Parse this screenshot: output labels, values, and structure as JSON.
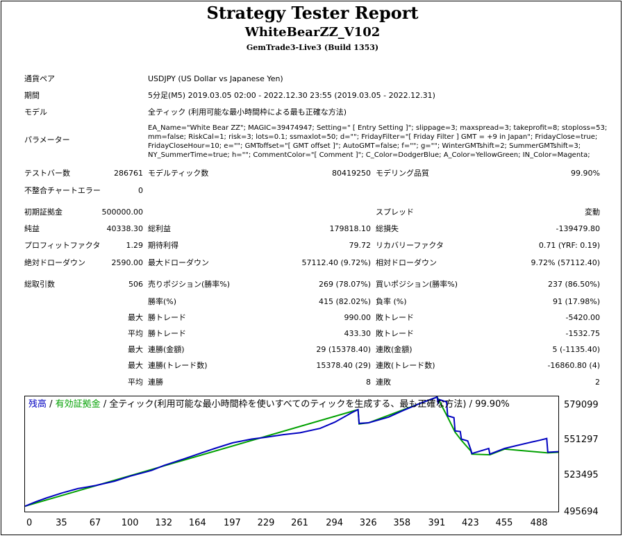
{
  "header": {
    "title": "Strategy Tester Report",
    "subtitle": "WhiteBearZZ_V102",
    "build": "GemTrade3-Live3 (Build 1353)"
  },
  "info": {
    "pair_label": "通貨ペア",
    "pair_value": "USDJPY (US Dollar vs Japanese Yen)",
    "period_label": "期間",
    "period_value": "5分足(M5) 2019.03.05 02:00 - 2022.12.30 23:55 (2019.03.05 - 2022.12.31)",
    "model_label": "モデル",
    "model_value": "全ティック (利用可能な最小時間枠による最も正確な方法)",
    "params_label": "パラメーター",
    "params_lines": [
      "EA_Name=\"White Bear ZZ\"; MAGIC=39474947; Setting=\" [ Entry Setting ]\"; slippage=3; maxspread=3; takeprofit=8; stoploss=53;",
      "mm=false; RiskCal=1; risk=3; lots=0.1; ssmaxlot=50; d=\"\"; FridayFilter=\"[ Friday Filter ] GMT = +9 in Japan\"; FridayClose=true;",
      "FridayCloseHour=10; e=\"\"; GMToffset=\"[ GMT offset ]\"; AutoGMT=false; f=\"\"; g=\"\"; WinterGMTshift=2; SummerGMTshift=3;",
      "NY_SummerTime=true; h=\"\"; CommentColor=\"[ Comment ]\"; C_Color=DodgerBlue; A_Color=YellowGreen; IN_Color=Magenta;"
    ]
  },
  "stats": {
    "bars_label": "テストバー数",
    "bars_value": "286761",
    "ticks_label": "モデルティック数",
    "ticks_value": "80419250",
    "quality_label": "モデリング品質",
    "quality_value": "99.90%",
    "mismatch_label": "不整合チャートエラー",
    "mismatch_value": "0",
    "deposit_label": "初期証拠金",
    "deposit_value": "500000.00",
    "spread_label": "スプレッド",
    "spread_value": "変動",
    "net_label": "純益",
    "net_value": "40338.30",
    "gross_profit_label": "総利益",
    "gross_profit_value": "179818.10",
    "gross_loss_label": "総損失",
    "gross_loss_value": "-139479.80",
    "pf_label": "プロフィットファクタ",
    "pf_value": "1.29",
    "payoff_label": "期待利得",
    "payoff_value": "79.72",
    "recovery_label": "リカバリーファクタ",
    "recovery_value": "0.71 (YRF: 0.19)",
    "abs_dd_label": "絶対ドローダウン",
    "abs_dd_value": "2590.00",
    "max_dd_label": "最大ドローダウン",
    "max_dd_value": "57112.40 (9.72%)",
    "rel_dd_label": "相対ドローダウン",
    "rel_dd_value": "9.72% (57112.40)",
    "trades_label": "総取引数",
    "trades_value": "506",
    "short_label": "売りポジション(勝率%)",
    "short_value": "269 (78.07%)",
    "long_label": "買いポジション(勝率%)",
    "long_value": "237 (86.50%)",
    "winrate_label": "勝率(%)",
    "winrate_value": "415 (82.02%)",
    "lossrate_label": "負率 (%)",
    "lossrate_value": "91 (17.98%)",
    "max_label": "最大",
    "avg_label": "平均",
    "win_trade_label": "勝トレード",
    "loss_trade_label": "敗トレード",
    "max_win_value": "990.00",
    "max_loss_value": "-5420.00",
    "avg_win_value": "433.30",
    "avg_loss_value": "-1532.75",
    "cons_win_amt_label": "連勝(金額)",
    "cons_win_amt_value": "29 (15378.40)",
    "cons_loss_amt_label": "連敗(金額)",
    "cons_loss_amt_value": "5 (-1135.40)",
    "cons_win_cnt_label": "連勝(トレード数)",
    "cons_win_cnt_value": "15378.40 (29)",
    "cons_loss_cnt_label": "連敗(トレード数)",
    "cons_loss_cnt_value": "-16860.80 (4)",
    "avg_cons_win_label": "連勝",
    "avg_cons_win_value": "8",
    "avg_cons_loss_label": "連敗",
    "avg_cons_loss_value": "2"
  },
  "chart_title": {
    "balance": "残高",
    "sep1": " / ",
    "equity": "有効証拠金",
    "rest": " / 全ティック(利用可能な最小時間枠を使いすべてのティックを生成する、最も正確な方法) / 99.90%"
  },
  "colors": {
    "balance": "#0000c0",
    "equity": "#00a000"
  },
  "chart_data": {
    "type": "line",
    "x_ticks": [
      "0",
      "35",
      "67",
      "100",
      "132",
      "164",
      "197",
      "229",
      "261",
      "294",
      "326",
      "358",
      "391",
      "423",
      "455",
      "488"
    ],
    "x_tick_values": [
      0,
      35,
      67,
      100,
      132,
      164,
      197,
      229,
      261,
      294,
      326,
      358,
      391,
      423,
      455,
      488
    ],
    "y_ticks": [
      "579099",
      "551297",
      "523495",
      "495694"
    ],
    "y_tick_values": [
      579099,
      551297,
      523495,
      495694
    ],
    "xlim": [
      0,
      506
    ],
    "ylim": [
      495694,
      587500
    ],
    "series": [
      {
        "name": "残高",
        "x": [
          0,
          10,
          20,
          35,
          50,
          67,
          85,
          100,
          120,
          132,
          150,
          164,
          180,
          197,
          215,
          229,
          245,
          261,
          280,
          294,
          310,
          316,
          317,
          326,
          345,
          358,
          375,
          391,
          392,
          393,
          400,
          401,
          407,
          408,
          413,
          414,
          420,
          423,
          424,
          432,
          440,
          441,
          455,
          465,
          480,
          488,
          495,
          496,
          506
        ],
        "y": [
          500000,
          503500,
          506500,
          510500,
          514000,
          516500,
          520000,
          524000,
          528500,
          532500,
          537500,
          541500,
          546000,
          550500,
          553500,
          555000,
          557000,
          558500,
          562000,
          567000,
          574500,
          577000,
          566000,
          566500,
          571000,
          576000,
          582000,
          587000,
          581500,
          585000,
          583000,
          572000,
          570500,
          560000,
          559500,
          553500,
          552000,
          545000,
          542000,
          544000,
          546000,
          541500,
          546000,
          548000,
          551000,
          552500,
          554000,
          543000,
          543500
        ]
      },
      {
        "name": "有効証拠金",
        "x": [
          0,
          316,
          317,
          326,
          391,
          401,
          408,
          414,
          423,
          424,
          441,
          455,
          496,
          506
        ],
        "y": [
          500000,
          577000,
          565500,
          566500,
          587000,
          571000,
          559000,
          552500,
          544000,
          541500,
          541000,
          545500,
          542500,
          543000
        ]
      }
    ]
  }
}
